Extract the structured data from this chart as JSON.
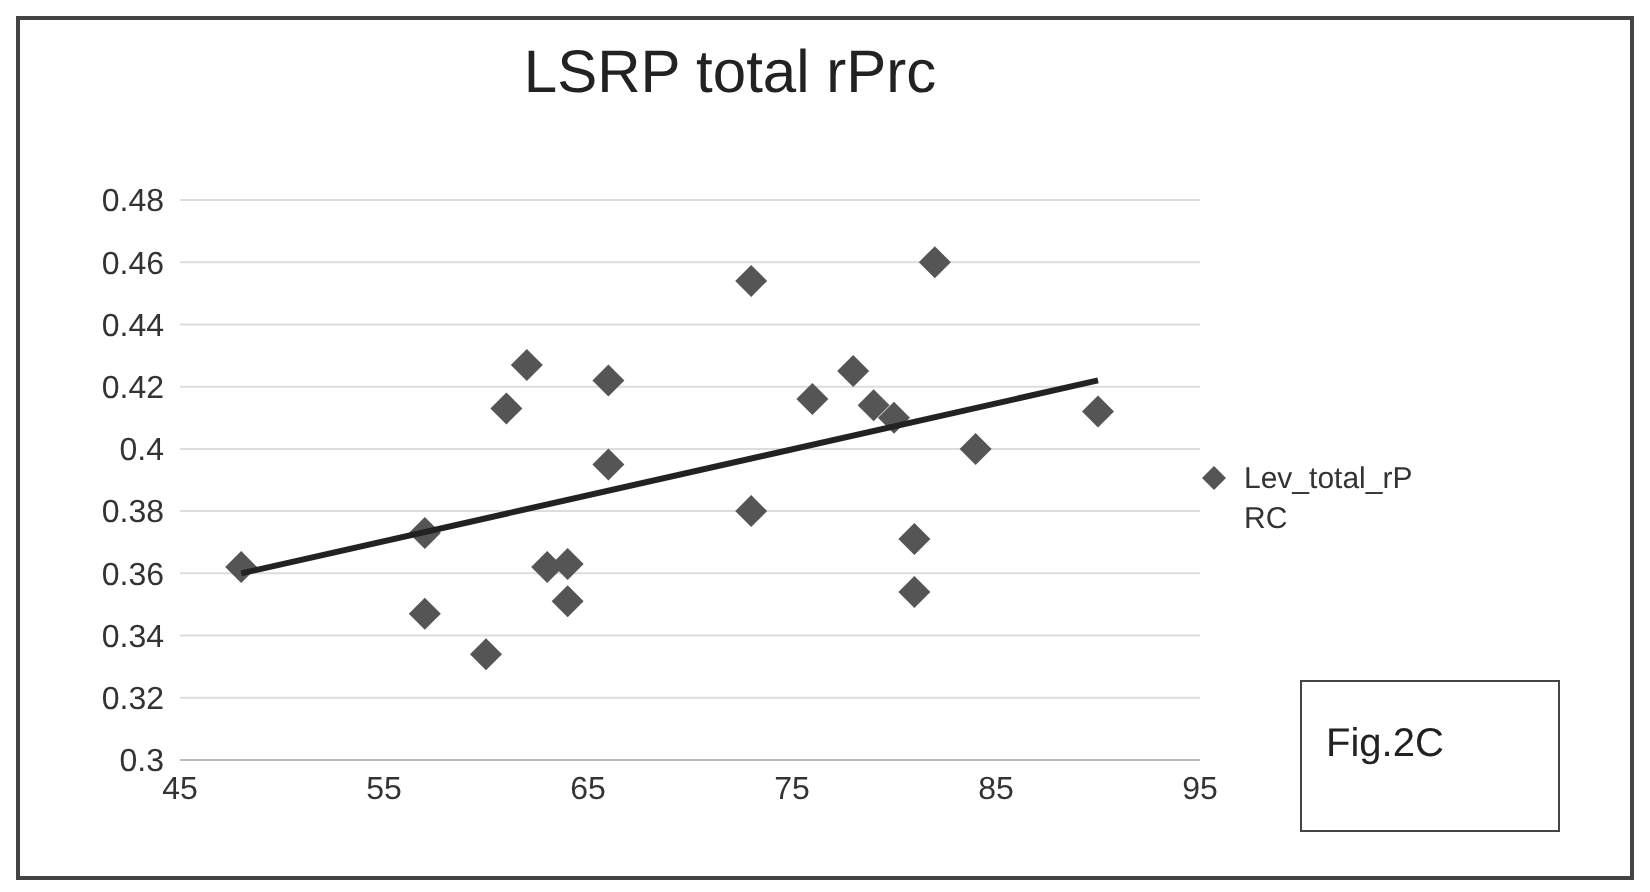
{
  "chart_data": {
    "type": "scatter",
    "title": "LSRP total rPrc",
    "x": [
      48,
      57,
      57,
      60,
      61,
      62,
      63,
      64,
      64,
      66,
      66,
      73,
      73,
      76,
      78,
      79,
      80,
      81,
      81,
      82,
      84,
      90
    ],
    "series": [
      {
        "name": "Lev_total_rPRC",
        "type": "scatter",
        "color": "#555555",
        "marker": "diamond",
        "values": [
          0.362,
          0.373,
          0.347,
          0.334,
          0.413,
          0.427,
          0.362,
          0.363,
          0.351,
          0.422,
          0.395,
          0.454,
          0.38,
          0.416,
          0.425,
          0.414,
          0.41,
          0.371,
          0.354,
          0.46,
          0.4,
          0.412
        ]
      },
      {
        "type": "line",
        "color": "#222222",
        "marker": "none",
        "x": [
          48,
          90
        ],
        "values": [
          0.36,
          0.422
        ]
      }
    ],
    "xlim": [
      45,
      95
    ],
    "xticks": [
      45,
      55,
      65,
      75,
      85,
      95
    ],
    "ylim": [
      0.3,
      0.48
    ],
    "yticks": [
      0.3,
      0.32,
      0.34,
      0.36,
      0.38,
      0.4,
      0.42,
      0.44,
      0.46,
      0.48
    ],
    "grid": "y",
    "legend": "right",
    "annotations": [
      "Fig.2C"
    ]
  }
}
